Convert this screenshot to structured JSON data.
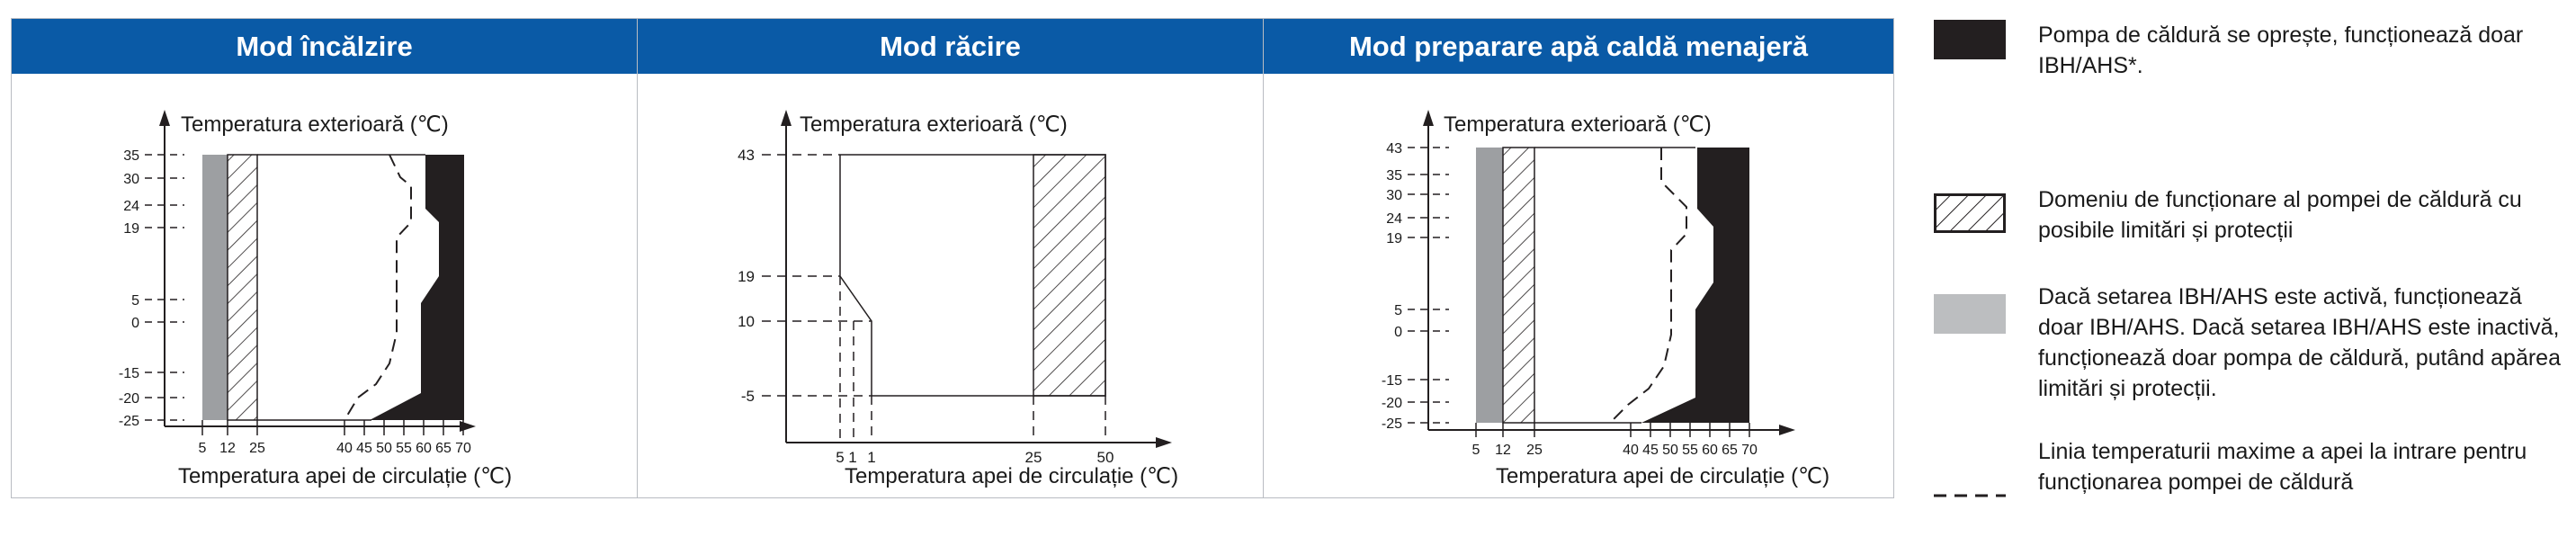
{
  "panels": [
    {
      "title": "Mod încălzire",
      "y_axis_label": "Temperatura exterioară (℃)",
      "x_axis_label": "Temperatura apei de circulație  (℃)",
      "x_ticks": [
        "5",
        "12",
        "25",
        "40",
        "45",
        "50",
        "55",
        "60",
        "65",
        "70"
      ],
      "y_ticks": [
        "35",
        "30",
        "24",
        "19",
        "5",
        "0",
        "-15",
        "-20",
        "-25"
      ]
    },
    {
      "title": "Mod răcire",
      "y_axis_label": "Temperatura exterioară (℃)",
      "x_axis_label": "Temperatura apei de circulație  (℃)",
      "x_ticks": [
        "5",
        "1",
        "1",
        "25",
        "50"
      ],
      "y_ticks": [
        "43",
        "19",
        "10",
        "-5"
      ]
    },
    {
      "title": "Mod preparare apă caldă menajeră",
      "y_axis_label": "Temperatura exterioară (℃)",
      "x_axis_label": "Temperatura apei de circulație  (℃)",
      "x_ticks": [
        "5",
        "12",
        "25",
        "40",
        "45",
        "50",
        "55",
        "60",
        "65",
        "70"
      ],
      "y_ticks": [
        "43",
        "35",
        "30",
        "24",
        "19",
        "5",
        "0",
        "-15",
        "-20",
        "-25"
      ]
    }
  ],
  "legend": [
    {
      "swatch": "solid-black",
      "color": "#231f20",
      "text": "Pompa de căldură se oprește, funcționează doar IBH/AHS*."
    },
    {
      "swatch": "hatched",
      "color": "#231f20",
      "text": "Domeniu de funcționare al pompei de căldură cu posibile limitări și protecții"
    },
    {
      "swatch": "solid-grey",
      "color": "#bcbec0",
      "text": "Dacă setarea IBH/AHS este activă, funcționează doar IBH/AHS. Dacă setarea IBH/AHS este inactivă, funcționează doar pompa de căldură, putând apărea limitări și protecții."
    },
    {
      "swatch": "dashed-line",
      "color": "#231f20",
      "text": "Linia temperaturii maxime a apei la intrare pentru funcționarea pompei de căldură"
    }
  ]
}
